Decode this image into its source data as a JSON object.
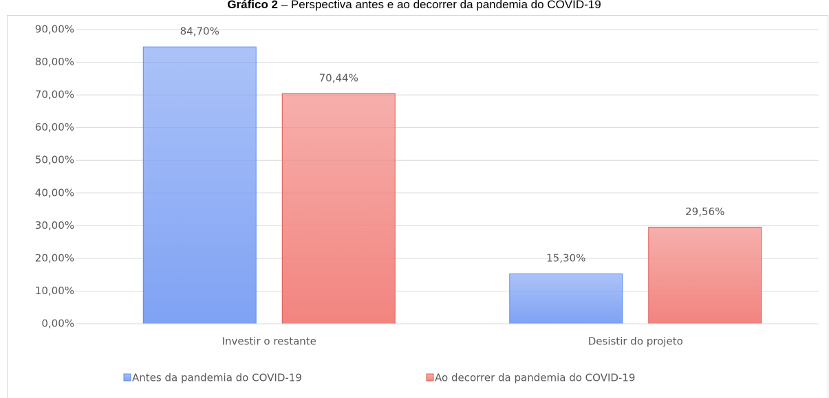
{
  "chart_data": {
    "type": "bar",
    "title_label": "Gráfico 2",
    "title": "– Perspectiva antes e ao decorrer da pandemia do COVID-19",
    "categories": [
      "Investir o restante",
      "Desistir do projeto"
    ],
    "series": [
      {
        "name": "Antes da pandemia do COVID-19",
        "color": "#7fa2f4",
        "edge": "#5b8def",
        "values": [
          84.7,
          15.3
        ],
        "value_labels": [
          "84,70%",
          "15,30%"
        ]
      },
      {
        "name": "Ao decorrer da pandemia do COVID-19",
        "color": "#f2847f",
        "edge": "#e05a55",
        "values": [
          70.44,
          29.56
        ],
        "value_labels": [
          "70,44%",
          "29,56%"
        ]
      }
    ],
    "ylim": [
      0,
      90
    ],
    "yticks": [
      {
        "value": 0,
        "label": "0,00%"
      },
      {
        "value": 10,
        "label": "10,00%"
      },
      {
        "value": 20,
        "label": "20,00%"
      },
      {
        "value": 30,
        "label": "30,00%"
      },
      {
        "value": 40,
        "label": "40,00%"
      },
      {
        "value": 50,
        "label": "50,00%"
      },
      {
        "value": 60,
        "label": "60,00%"
      },
      {
        "value": 70,
        "label": "70,00%"
      },
      {
        "value": 80,
        "label": "80,00%"
      },
      {
        "value": 90,
        "label": "90,00%"
      }
    ],
    "grid": true,
    "legend": "bottom"
  }
}
